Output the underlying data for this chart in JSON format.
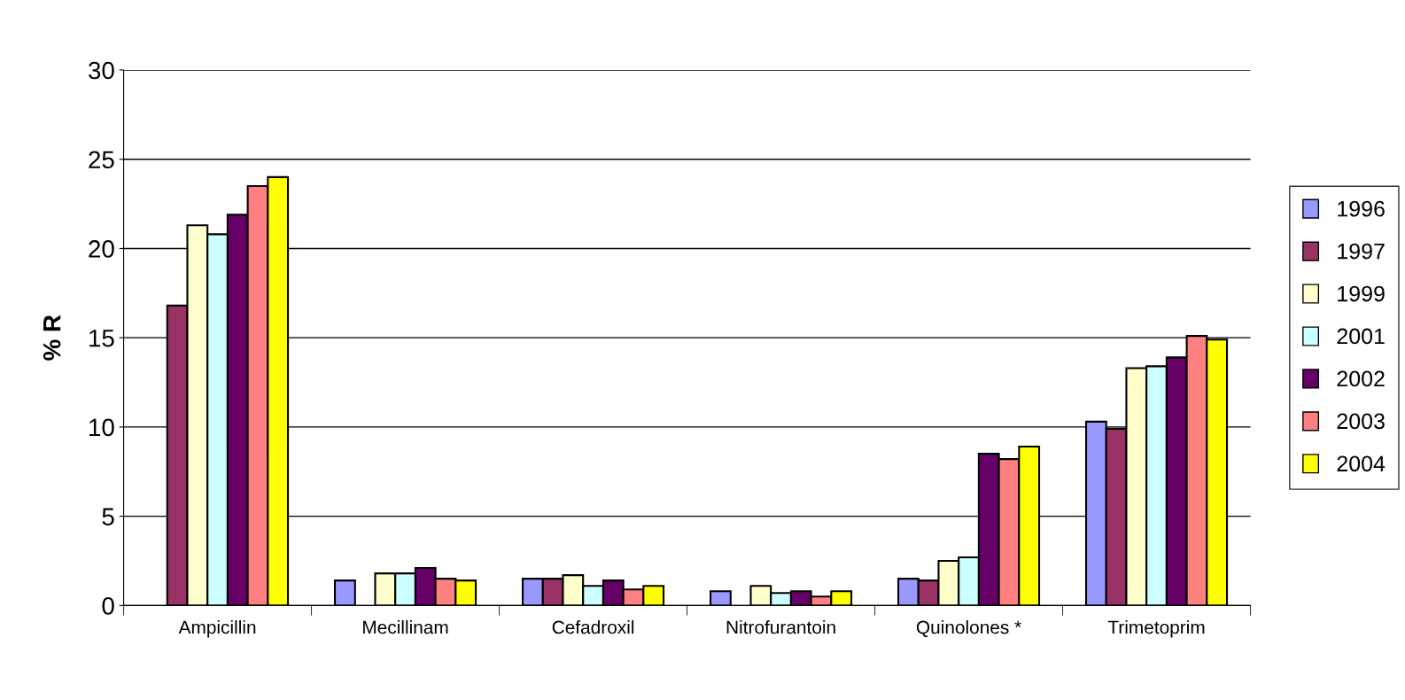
{
  "chart_data": {
    "type": "bar",
    "ylabel": "% R",
    "categories": [
      "Ampicillin",
      "Mecillinam",
      "Cefadroxil",
      "Nitrofurantoin",
      "Quinolones *",
      "Trimetoprim"
    ],
    "series": [
      {
        "name": "1996",
        "color": "#9999ff",
        "values": [
          null,
          1.4,
          1.5,
          0.8,
          1.5,
          10.3
        ]
      },
      {
        "name": "1997",
        "color": "#993366",
        "values": [
          16.8,
          null,
          1.5,
          null,
          1.4,
          9.9
        ]
      },
      {
        "name": "1999",
        "color": "#ffffcc",
        "values": [
          21.3,
          1.8,
          1.7,
          1.1,
          2.5,
          13.3
        ]
      },
      {
        "name": "2001",
        "color": "#ccffff",
        "values": [
          20.8,
          1.8,
          1.1,
          0.7,
          2.7,
          13.4
        ]
      },
      {
        "name": "2002",
        "color": "#660066",
        "values": [
          21.9,
          2.1,
          1.4,
          0.8,
          8.5,
          13.9
        ]
      },
      {
        "name": "2003",
        "color": "#ff8080",
        "values": [
          23.5,
          1.5,
          0.9,
          0.5,
          8.2,
          15.1
        ]
      },
      {
        "name": "2004",
        "color": "#ffff00",
        "values": [
          24.0,
          1.4,
          1.1,
          0.8,
          8.9,
          14.9
        ]
      }
    ],
    "ylim": [
      0,
      30
    ],
    "yticks": [
      0,
      5,
      10,
      15,
      20,
      25,
      30
    ],
    "grid": "y",
    "legend": "right"
  }
}
